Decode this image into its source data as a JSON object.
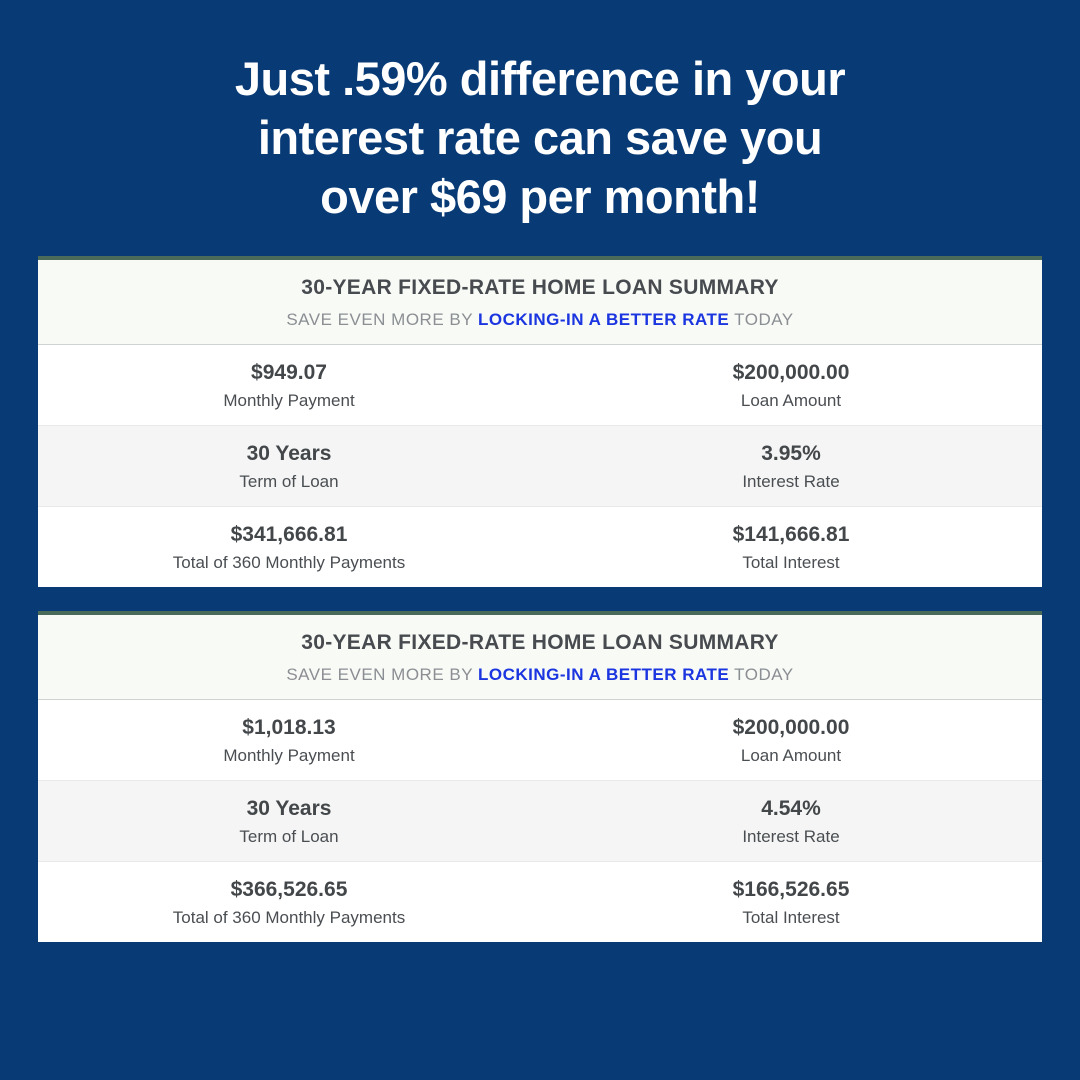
{
  "headline_line1": "Just .59% difference in your",
  "headline_line2": "interest rate can save you",
  "headline_line3": "over $69 per month!",
  "summaries": [
    {
      "title": "30-YEAR FIXED-RATE HOME LOAN SUMMARY",
      "sub_prefix": "SAVE EVEN MORE BY ",
      "sub_link": "LOCKING-IN A BETTER RATE",
      "sub_suffix": " TODAY",
      "rows": [
        {
          "alt": false,
          "left_value": "$949.07",
          "left_label": "Monthly Payment",
          "right_value": "$200,000.00",
          "right_label": "Loan Amount"
        },
        {
          "alt": true,
          "left_value": "30 Years",
          "left_label": "Term of Loan",
          "right_value": "3.95%",
          "right_label": "Interest Rate"
        },
        {
          "alt": false,
          "left_value": "$341,666.81",
          "left_label": "Total of 360 Monthly Payments",
          "right_value": "$141,666.81",
          "right_label": "Total Interest"
        }
      ]
    },
    {
      "title": "30-YEAR FIXED-RATE HOME LOAN SUMMARY",
      "sub_prefix": "SAVE EVEN MORE BY ",
      "sub_link": "LOCKING-IN A BETTER RATE",
      "sub_suffix": " TODAY",
      "rows": [
        {
          "alt": false,
          "left_value": "$1,018.13",
          "left_label": "Monthly Payment",
          "right_value": "$200,000.00",
          "right_label": "Loan Amount"
        },
        {
          "alt": true,
          "left_value": "30 Years",
          "left_label": "Term of Loan",
          "right_value": "4.54%",
          "right_label": "Interest Rate"
        },
        {
          "alt": false,
          "left_value": "$366,526.65",
          "left_label": "Total of 360 Monthly Payments",
          "right_value": "$166,526.65",
          "right_label": "Total Interest"
        }
      ]
    }
  ]
}
